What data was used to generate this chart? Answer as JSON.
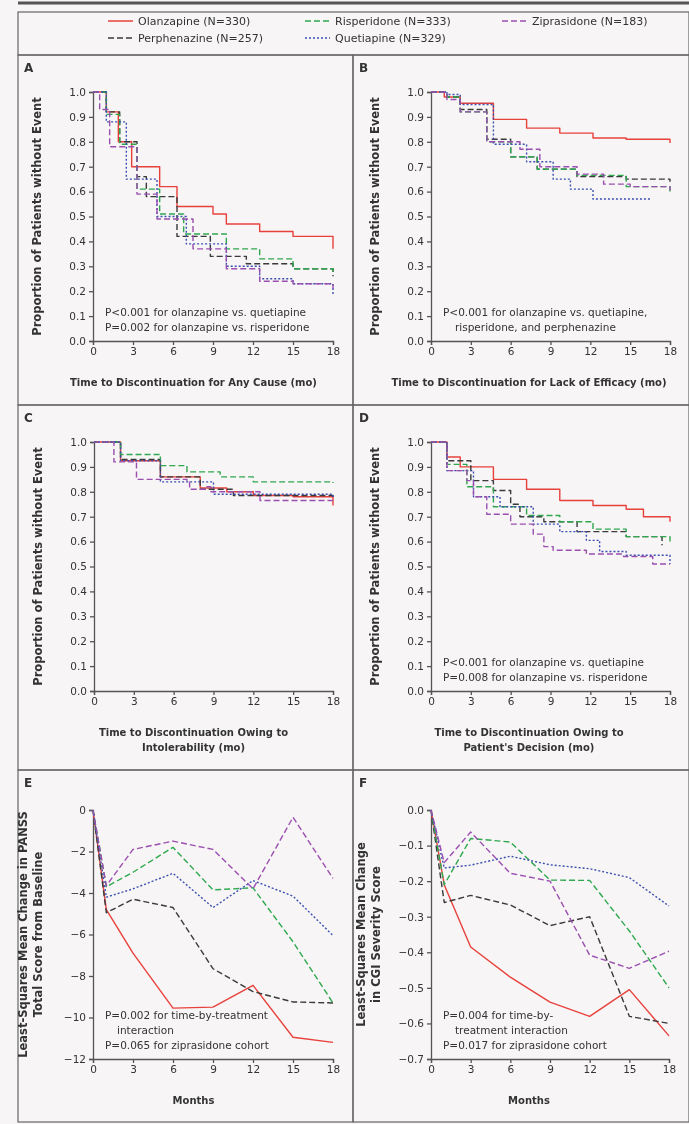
{
  "chart_data": [
    {
      "type": "step",
      "title": "A",
      "xlabel": "Time to Discontinuation for Any Cause (mo)",
      "ylabel": "Proportion of Patients without Event",
      "legend": "top",
      "xlim": [
        0,
        18
      ],
      "xticks": [
        0,
        3,
        6,
        9,
        12,
        15,
        18
      ],
      "ylim": [
        0,
        1
      ],
      "yticks": [
        {
          "value": 0,
          "label": "0.0"
        },
        0.1,
        0.2,
        0.3,
        0.4,
        0.5,
        0.6,
        0.7,
        0.8,
        0.9,
        {
          "value": 1,
          "label": "1.0"
        }
      ],
      "annotations": [
        "P<0.001 for olanzapine vs. quetiapine",
        "P=0.002 for olanzapine vs. risperidone"
      ],
      "series": [
        {
          "name": "Olanzapine (N=330)",
          "color": "#e8413c",
          "line_style": "solid",
          "x": [
            0,
            1,
            1.9,
            2.9,
            5,
            6.3,
            9,
            10,
            12.5,
            15,
            18
          ],
          "values": [
            1,
            0.92,
            0.8,
            0.7,
            0.62,
            0.54,
            0.51,
            0.47,
            0.44,
            0.42,
            0.37
          ]
        },
        {
          "name": "Perphenazine (N=257)",
          "color": "#3a3a3a",
          "line_style": "dashed",
          "x": [
            0,
            1,
            2,
            3.3,
            4,
            6.3,
            8.8,
            11.5,
            15,
            18
          ],
          "values": [
            1,
            0.92,
            0.8,
            0.66,
            0.58,
            0.42,
            0.34,
            0.31,
            0.29,
            0.26
          ]
        },
        {
          "name": "Risperidone (N=333)",
          "color": "#2fa84f",
          "line_style": "dashed",
          "x": [
            0,
            1,
            2,
            3.3,
            5,
            6.8,
            10,
            12.5,
            15,
            18
          ],
          "values": [
            1,
            0.91,
            0.79,
            0.61,
            0.51,
            0.43,
            0.37,
            0.33,
            0.29,
            0.27
          ]
        },
        {
          "name": "Quetiapine (N=329)",
          "color": "#3b4fb0",
          "line_style": "dotted",
          "x": [
            0,
            1,
            2.5,
            4.8,
            7,
            10,
            12.5,
            15,
            18
          ],
          "values": [
            1,
            0.88,
            0.65,
            0.5,
            0.39,
            0.3,
            0.25,
            0.23,
            0.185
          ]
        },
        {
          "name": "Ziprasidone (N=183)",
          "color": "#9b4fb0",
          "line_style": "dashed",
          "x": [
            0,
            0.5,
            1.25,
            3.3,
            4.8,
            7.5,
            10,
            12.5,
            15,
            18
          ],
          "values": [
            1,
            0.93,
            0.78,
            0.59,
            0.49,
            0.37,
            0.29,
            0.24,
            0.23,
            0.21
          ]
        }
      ]
    },
    {
      "type": "step",
      "title": "B",
      "xlabel": "Time to Discontinuation for Lack of Efficacy (mo)",
      "ylabel": "Proportion of Patients without Event",
      "xlim": [
        0,
        18
      ],
      "xticks": [
        0,
        3,
        6,
        9,
        12,
        15,
        18
      ],
      "ylim": [
        0,
        1
      ],
      "yticks": [
        {
          "value": 0,
          "label": "0.0"
        },
        0.1,
        0.2,
        0.3,
        0.4,
        0.5,
        0.6,
        0.7,
        0.8,
        0.9,
        {
          "value": 1,
          "label": "1.0"
        }
      ],
      "annotations": [
        "P<0.001 for olanzapine vs. quetiapine,\nrisperidone, and perphenazine"
      ],
      "series": [
        {
          "color": "#e8413c",
          "line_style": "solid",
          "x": [
            0,
            1,
            2.2,
            4.7,
            7.2,
            9.7,
            12.2,
            14.7,
            18
          ],
          "values": [
            1,
            0.98,
            0.955,
            0.89,
            0.855,
            0.835,
            0.815,
            0.81,
            0.795
          ]
        },
        {
          "color": "#3a3a3a",
          "line_style": "dashed",
          "x": [
            0,
            1.2,
            2.2,
            4.2,
            6,
            8,
            11,
            14.7,
            18
          ],
          "values": [
            1,
            0.98,
            0.93,
            0.81,
            0.74,
            0.69,
            0.66,
            0.65,
            0.64
          ]
        },
        {
          "color": "#2fa84f",
          "line_style": "dashed",
          "x": [
            0,
            1.2,
            2.2,
            4.2,
            6,
            8,
            11,
            14.7,
            18
          ],
          "values": [
            1,
            0.98,
            0.92,
            0.8,
            0.74,
            0.69,
            0.665,
            0.62,
            0.6
          ]
        },
        {
          "color": "#3b4fb0",
          "line_style": "dotted",
          "x": [
            0,
            1.2,
            2.2,
            4.7,
            7.2,
            9.2,
            10.5,
            12.2,
            16.5
          ],
          "values": [
            1,
            0.99,
            0.95,
            0.79,
            0.72,
            0.65,
            0.61,
            0.57,
            0.565
          ]
        },
        {
          "color": "#9b4fb0",
          "line_style": "dashed",
          "x": [
            0,
            1.2,
            2.2,
            4.2,
            6.7,
            8.2,
            11,
            13,
            15,
            18
          ],
          "values": [
            1,
            0.97,
            0.92,
            0.8,
            0.77,
            0.7,
            0.67,
            0.63,
            0.62,
            0.605
          ]
        }
      ]
    },
    {
      "type": "step",
      "title": "C",
      "xlabel": "Time to Discontinuation Owing to\nIntolerability (mo)",
      "ylabel": "Proportion of Patients without Event",
      "xlim": [
        0,
        18
      ],
      "xticks": [
        0,
        3,
        6,
        9,
        12,
        15,
        18
      ],
      "ylim": [
        0,
        1
      ],
      "yticks": [
        {
          "value": 0,
          "label": "0.0"
        },
        0.1,
        0.2,
        0.3,
        0.4,
        0.5,
        0.6,
        0.7,
        0.8,
        0.9,
        {
          "value": 1,
          "label": "1.0"
        }
      ],
      "series": [
        {
          "color": "#e8413c",
          "line_style": "solid",
          "x": [
            0,
            2,
            5,
            8,
            10,
            12,
            15,
            18
          ],
          "values": [
            1,
            0.925,
            0.86,
            0.815,
            0.8,
            0.785,
            0.78,
            0.745
          ]
        },
        {
          "color": "#3a3a3a",
          "line_style": "dashed",
          "x": [
            0,
            2,
            5,
            8,
            10.5,
            15,
            18
          ],
          "values": [
            1,
            0.93,
            0.86,
            0.81,
            0.785,
            0.785,
            0.77
          ]
        },
        {
          "color": "#2fa84f",
          "line_style": "dashed",
          "x": [
            0,
            2,
            5,
            7,
            9.5,
            12,
            18
          ],
          "values": [
            1,
            0.95,
            0.905,
            0.88,
            0.86,
            0.84,
            0.835
          ]
        },
        {
          "color": "#3b4fb0",
          "line_style": "dotted",
          "x": [
            0,
            2,
            5,
            9,
            18
          ],
          "values": [
            1,
            0.925,
            0.84,
            0.79,
            0.78
          ]
        },
        {
          "color": "#9b4fb0",
          "line_style": "dashed",
          "x": [
            0,
            1.5,
            3.2,
            7,
            7.2,
            8.5,
            8.8,
            12.5,
            18
          ],
          "values": [
            1,
            0.92,
            0.85,
            0.845,
            0.81,
            0.82,
            0.8,
            0.765,
            0.765
          ]
        }
      ]
    },
    {
      "type": "step",
      "title": "D",
      "xlabel": "Time to Discontinuation Owing to\nPatient's Decision (mo)",
      "ylabel": "Proportion of Patients without Event",
      "xlim": [
        0,
        18
      ],
      "xticks": [
        0,
        3,
        6,
        9,
        12,
        15,
        18
      ],
      "ylim": [
        0,
        1
      ],
      "yticks": [
        {
          "value": 0,
          "label": "0.0"
        },
        0.1,
        0.2,
        0.3,
        0.4,
        0.5,
        0.6,
        0.7,
        0.8,
        0.9,
        {
          "value": 1,
          "label": "1.0"
        }
      ],
      "annotations": [
        "P<0.001 for olanzapine vs. quetiapine",
        "P=0.008 for olanzapine vs. risperidone"
      ],
      "series": [
        {
          "color": "#e8413c",
          "line_style": "solid",
          "x": [
            0,
            1.2,
            2.2,
            4.7,
            7.2,
            9.7,
            12.2,
            14.7,
            16,
            18
          ],
          "values": [
            1,
            0.94,
            0.9,
            0.85,
            0.81,
            0.765,
            0.745,
            0.73,
            0.7,
            0.68
          ]
        },
        {
          "color": "#3a3a3a",
          "line_style": "dashed",
          "x": [
            0,
            1.2,
            3,
            4.7,
            6,
            6.7,
            8.5,
            11,
            14.7,
            17.4
          ],
          "values": [
            1,
            0.925,
            0.845,
            0.805,
            0.75,
            0.7,
            0.68,
            0.64,
            0.62,
            0.585
          ]
        },
        {
          "color": "#2fa84f",
          "line_style": "dashed",
          "x": [
            0,
            1.2,
            2.7,
            4.7,
            7.2,
            9.7,
            12.2,
            14.7,
            18
          ],
          "values": [
            1,
            0.91,
            0.82,
            0.74,
            0.705,
            0.68,
            0.65,
            0.62,
            0.6
          ]
        },
        {
          "color": "#3b4fb0",
          "line_style": "dotted",
          "x": [
            0,
            1.2,
            3.2,
            5.2,
            7.7,
            9.7,
            11.7,
            12.7,
            14.7,
            18
          ],
          "values": [
            1,
            0.885,
            0.78,
            0.74,
            0.67,
            0.64,
            0.605,
            0.56,
            0.545,
            0.51
          ]
        },
        {
          "color": "#9b4fb0",
          "line_style": "dashed",
          "x": [
            0,
            1.2,
            2.7,
            3.2,
            4.2,
            6,
            7.7,
            8.5,
            9.2,
            11.7,
            14.5,
            16.7,
            18
          ],
          "values": [
            1,
            0.885,
            0.845,
            0.78,
            0.71,
            0.67,
            0.63,
            0.58,
            0.565,
            0.55,
            0.54,
            0.51,
            0.51
          ]
        }
      ]
    },
    {
      "type": "line",
      "title": "E",
      "xlabel": "Months",
      "ylabel": "Least-Squares Mean Change in PANSS\nTotal Score from Baseline",
      "x": [
        0,
        1,
        3,
        6,
        9,
        12,
        15,
        18
      ],
      "xlim": [
        0,
        18
      ],
      "xticks": [
        0,
        3,
        6,
        9,
        12,
        15,
        18
      ],
      "ylim": [
        -12,
        0
      ],
      "yticks": [
        {
          "value": -12,
          "label": "−12"
        },
        {
          "value": -10,
          "label": "−10"
        },
        {
          "value": -8,
          "label": "−8"
        },
        {
          "value": -6,
          "label": "−6"
        },
        {
          "value": -4,
          "label": "−4"
        },
        {
          "value": -2,
          "label": "−2"
        },
        0
      ],
      "annotations": [
        "P=0.002 for time-by-treatment\ninteraction",
        "P=0.065 for ziprasidone cohort"
      ],
      "series": [
        {
          "color": "#e8413c",
          "line_style": "solid",
          "values": [
            0,
            -4.8,
            -6.9,
            -9.55,
            -9.5,
            -8.45,
            -10.95,
            -11.2
          ]
        },
        {
          "color": "#3a3a3a",
          "line_style": "dashed",
          "values": [
            0,
            -4.95,
            -4.3,
            -4.7,
            -7.65,
            -8.75,
            -9.25,
            -9.3
          ]
        },
        {
          "color": "#2fa84f",
          "line_style": "dashed",
          "values": [
            0,
            -3.7,
            -3.0,
            -1.8,
            -3.85,
            -3.75,
            -6.35,
            -9.3
          ]
        },
        {
          "color": "#3b4fb0",
          "line_style": "dotted",
          "values": [
            0,
            -4.2,
            -3.8,
            -3.05,
            -4.7,
            -3.4,
            -4.15,
            -6.05
          ]
        },
        {
          "color": "#9b4fb0",
          "line_style": "dashed",
          "values": [
            0,
            -3.65,
            -1.9,
            -1.5,
            -1.9,
            -3.8,
            -0.35,
            -3.3
          ]
        }
      ]
    },
    {
      "type": "line",
      "title": "F",
      "xlabel": "Months",
      "ylabel": "Least-Squares Mean Change\nin CGI Severity Score",
      "x": [
        0,
        1,
        3,
        6,
        9,
        12,
        15,
        18
      ],
      "xlim": [
        0,
        18
      ],
      "xticks": [
        0,
        3,
        6,
        9,
        12,
        15,
        18
      ],
      "ylim": [
        -0.7,
        0
      ],
      "yticks": [
        {
          "value": -0.7,
          "label": "−0.7"
        },
        {
          "value": -0.6,
          "label": "−0.6"
        },
        {
          "value": -0.5,
          "label": "−0.5"
        },
        {
          "value": -0.4,
          "label": "−0.4"
        },
        {
          "value": -0.3,
          "label": "−0.3"
        },
        {
          "value": -0.2,
          "label": "−0.2"
        },
        {
          "value": -0.1,
          "label": "−0.1"
        },
        {
          "value": 0,
          "label": "0.0"
        }
      ],
      "annotations": [
        "P=0.004 for time-by-\ntreatment interaction",
        "P=0.017 for ziprasidone cohort"
      ],
      "series": [
        {
          "color": "#e8413c",
          "line_style": "solid",
          "values": [
            0,
            -0.21,
            -0.385,
            -0.47,
            -0.54,
            -0.58,
            -0.505,
            -0.635
          ]
        },
        {
          "color": "#3a3a3a",
          "line_style": "dashed",
          "values": [
            0,
            -0.26,
            -0.24,
            -0.267,
            -0.325,
            -0.3,
            -0.58,
            -0.6
          ]
        },
        {
          "color": "#2fa84f",
          "line_style": "dashed",
          "values": [
            0,
            -0.21,
            -0.08,
            -0.09,
            -0.197,
            -0.198,
            -0.34,
            -0.5
          ]
        },
        {
          "color": "#3b4fb0",
          "line_style": "dotted",
          "values": [
            0,
            -0.163,
            -0.155,
            -0.13,
            -0.154,
            -0.165,
            -0.19,
            -0.27
          ]
        },
        {
          "color": "#9b4fb0",
          "line_style": "dashed",
          "values": [
            0,
            -0.148,
            -0.062,
            -0.178,
            -0.2,
            -0.408,
            -0.445,
            -0.397
          ]
        }
      ]
    }
  ]
}
